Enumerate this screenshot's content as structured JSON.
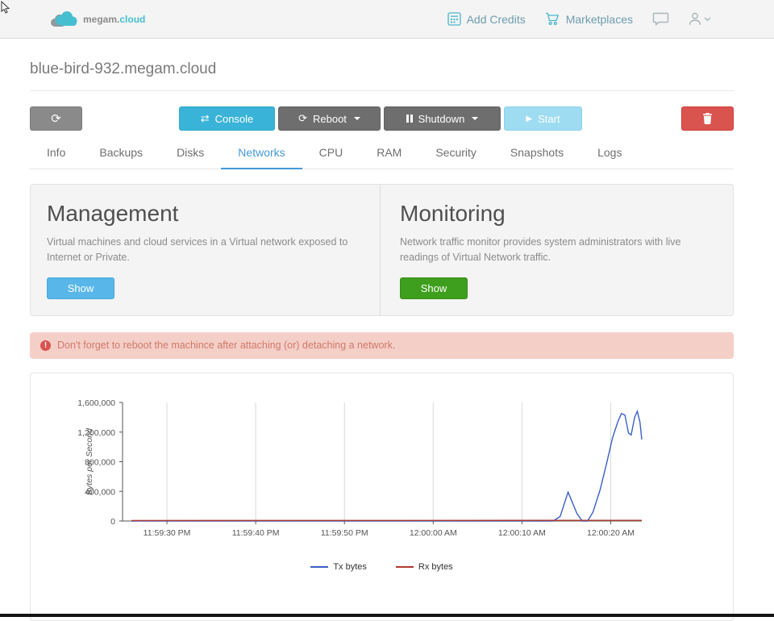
{
  "header": {
    "brand": "megam.",
    "brand_accent": "cloud",
    "links": [
      {
        "label": "Add Credits",
        "icon": "credits-icon"
      },
      {
        "label": "Marketplaces",
        "icon": "cart-icon"
      }
    ]
  },
  "page": {
    "title": "blue-bird-932.megam.cloud"
  },
  "toolbar": {
    "console_label": "Console",
    "reboot_label": "Reboot",
    "shutdown_label": "Shutdown",
    "start_label": "Start"
  },
  "tabs": [
    "Info",
    "Backups",
    "Disks",
    "Networks",
    "CPU",
    "RAM",
    "Security",
    "Snapshots",
    "Logs"
  ],
  "active_tab": "Networks",
  "management": {
    "title": "Management",
    "description": "Virtual machines and cloud services in a Virtual network exposed to Internet or Private.",
    "button_label": "Show"
  },
  "monitoring": {
    "title": "Monitoring",
    "description": "Network traffic monitor provides system administrators with live readings of Virtual Network traffic.",
    "button_label": "Show"
  },
  "alert": {
    "text": "Don't forget to reboot the machince after attaching (or) detaching a network."
  },
  "chart_data": {
    "type": "line",
    "title": "",
    "xlabel": "",
    "ylabel": "Bytes per Second",
    "ylim": [
      0,
      1600000
    ],
    "y_ticks": [
      0,
      400000,
      800000,
      1200000,
      1600000
    ],
    "x_domain_seconds": [
      0,
      58.5
    ],
    "x_ticks": [
      {
        "t": 5,
        "label": "11:59:30 PM"
      },
      {
        "t": 15,
        "label": "11:59:40 PM"
      },
      {
        "t": 25,
        "label": "11:59:50 PM"
      },
      {
        "t": 35,
        "label": "12:00:00 AM"
      },
      {
        "t": 45,
        "label": "12:00:10 AM"
      },
      {
        "t": 55,
        "label": "12:00:20 AM"
      }
    ],
    "grid": "vertical",
    "legend_position": "bottom",
    "series": [
      {
        "name": "Tx bytes",
        "color": "#3a5fc8",
        "points": [
          [
            1,
            0
          ],
          [
            47,
            0
          ],
          [
            48.5,
            0
          ],
          [
            49.3,
            60000
          ],
          [
            50.2,
            390000
          ],
          [
            51.2,
            100000
          ],
          [
            51.8,
            0
          ],
          [
            52.4,
            0
          ],
          [
            53.0,
            120000
          ],
          [
            53.8,
            420000
          ],
          [
            54.5,
            760000
          ],
          [
            55.2,
            1120000
          ],
          [
            55.8,
            1340000
          ],
          [
            56.2,
            1450000
          ],
          [
            56.6,
            1430000
          ],
          [
            57.0,
            1190000
          ],
          [
            57.3,
            1160000
          ],
          [
            57.7,
            1400000
          ],
          [
            58.0,
            1480000
          ],
          [
            58.3,
            1330000
          ],
          [
            58.5,
            1100000
          ]
        ]
      },
      {
        "name": "Rx bytes",
        "color": "#b03a2e",
        "points": [
          [
            1,
            7000
          ],
          [
            58.5,
            9000
          ]
        ]
      }
    ]
  },
  "colors": {
    "accent_teal": "#39b3d7",
    "tab_active": "#4698d8",
    "start_disabled": "#9edcf2",
    "danger": "#d9534f",
    "show_blue": "#58b7e8",
    "show_green": "#3e9e1d",
    "alert_bg": "#f4cfc8",
    "alert_text": "#d0796a"
  }
}
